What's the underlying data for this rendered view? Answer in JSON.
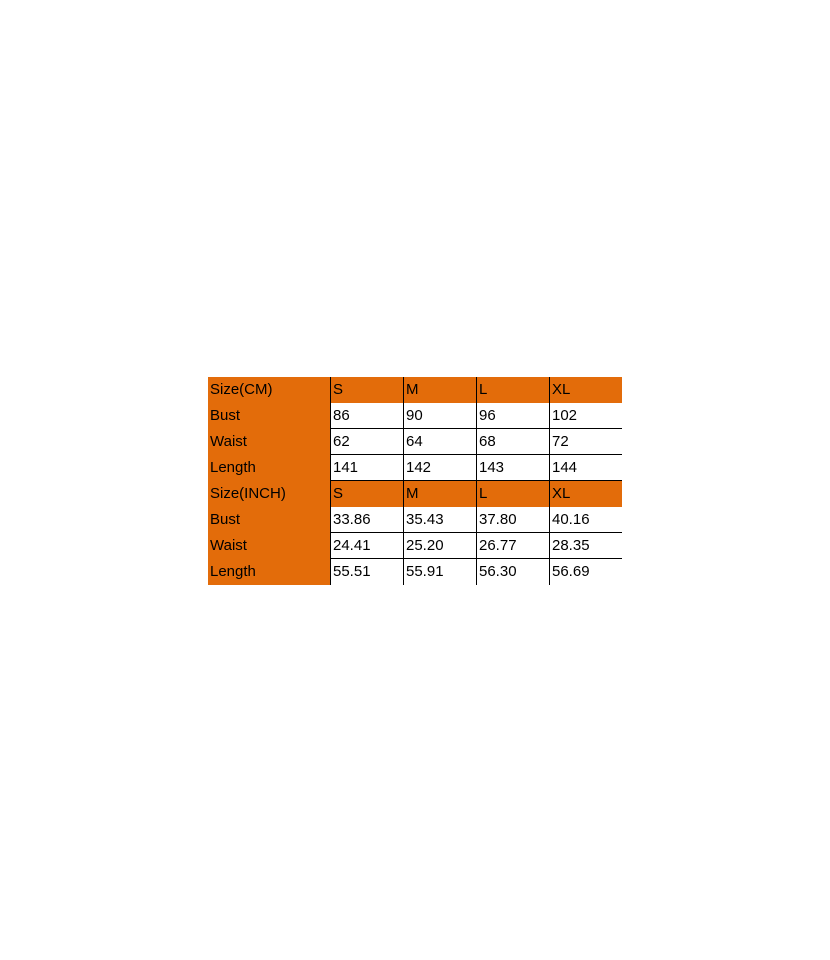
{
  "accent_color": "#e36c0a",
  "tables": [
    {
      "header": [
        "Size(CM)",
        "S",
        "M",
        "L",
        "XL"
      ],
      "rows": [
        [
          "Bust",
          "86",
          "90",
          "96",
          "102"
        ],
        [
          "Waist",
          "62",
          "64",
          "68",
          "72"
        ],
        [
          "Length",
          "141",
          "142",
          "143",
          "144"
        ]
      ]
    },
    {
      "header": [
        "Size(INCH)",
        "S",
        "M",
        "L",
        "XL"
      ],
      "rows": [
        [
          "Bust",
          "33.86",
          "35.43",
          "37.80",
          "40.16"
        ],
        [
          "Waist",
          "24.41",
          "25.20",
          "26.77",
          "28.35"
        ],
        [
          "Length",
          "55.51",
          "55.91",
          "56.30",
          "56.69"
        ]
      ]
    }
  ]
}
